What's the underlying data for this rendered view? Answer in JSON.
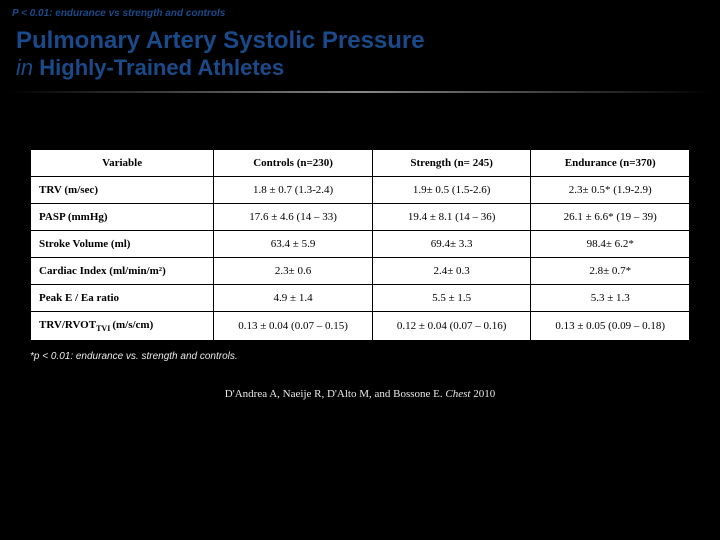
{
  "header_small": "P < 0.01: endurance vs strength and controls",
  "title": {
    "line1": " Pulmonary Artery Systolic Pressure",
    "line2_prefix": "in ",
    "line2_main": "Highly-Trained Athletes"
  },
  "table": {
    "columns": {
      "c0": "Variable",
      "c1": "Controls (n=230)",
      "c2": "Strength  (n= 245)",
      "c3": "Endurance  (n=370)"
    },
    "rows": [
      {
        "label": "TRV (m/sec)",
        "c1": "1.8 ± 0.7  (1.3-2.4)",
        "c2": "1.9± 0.5 (1.5-2.6)",
        "c3": "2.3± 0.5* (1.9-2.9)"
      },
      {
        "label": "PASP (mmHg)",
        "c1": "17.6 ± 4.6   (14 – 33)",
        "c2": "19.4 ± 8.1 (14 – 36)",
        "c3": "26.1 ± 6.6* (19 – 39)"
      },
      {
        "label": "Stroke Volume (ml)",
        "c1": "63.4 ± 5.9",
        "c2": "69.4± 3.3",
        "c3": "98.4± 6.2*"
      },
      {
        "label": "Cardiac Index (ml/min/m²)",
        "c1": "2.3± 0.6",
        "c2": "2.4± 0.3",
        "c3": "2.8± 0.7*"
      },
      {
        "label": "Peak E / Ea ratio",
        "c1": "4.9 ± 1.4",
        "c2": "5.5 ± 1.5",
        "c3": "5.3 ± 1.3"
      },
      {
        "label_html": true,
        "label_pre": "TRV/RVOT",
        "label_sub": "TVI ",
        "label_post": "(m/s/cm)",
        "c1": "0.13 ± 0.04 (0.07 – 0.15)",
        "c2": "0.12 ± 0.04 (0.07 – 0.16)",
        "c3": "0.13 ± 0.05 (0.09 – 0.18)"
      }
    ]
  },
  "footnote": "*p < 0.01: endurance  vs. strength and controls.",
  "citation": {
    "authors": "D'Andrea  A, Naeije R, D'Alto M, and Bossone E. ",
    "journal": "Chest",
    "year": " 2010"
  }
}
